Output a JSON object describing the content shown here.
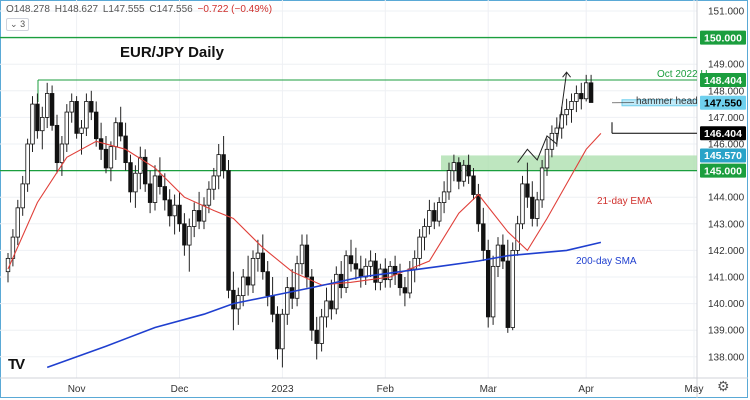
{
  "header": {
    "open": "O148.278",
    "high": "H148.627",
    "low": "L147.555",
    "close": "C147.556",
    "change": "−0.722 (−0.49%)",
    "indicator_count": "3"
  },
  "chart_data": {
    "type": "candlestick",
    "title": "EUR/JPY Daily",
    "ylim": [
      137.5,
      151.5
    ],
    "yticks": [
      "151.000",
      "150.000",
      "149.000",
      "148.000",
      "147.000",
      "146.000",
      "145.000",
      "144.000",
      "143.000",
      "142.000",
      "141.000",
      "140.000",
      "139.000",
      "138.000"
    ],
    "xticks": [
      "Nov",
      "Dec",
      "2023",
      "Feb",
      "Mar",
      "Apr",
      "May"
    ],
    "price_levels": [
      {
        "value": 150.0,
        "label": "150.000",
        "color": "#1b9e3e"
      },
      {
        "value": 148.404,
        "label": "148.404",
        "color": "#1b9e3e"
      },
      {
        "value": 147.55,
        "label": "147.550",
        "color": "#6fd0ee"
      },
      {
        "value": 146.404,
        "label": "146.404",
        "color": "#000000"
      },
      {
        "value": 145.57,
        "label": "145.570",
        "color": "#2aa3c8"
      },
      {
        "value": 145.0,
        "label": "145.000",
        "color": "#1b9e3e"
      }
    ],
    "annotations": {
      "oct_high": "Oct 2022 H",
      "hammer": "hammer head",
      "ema": "21-day EMA",
      "sma": "200-day SMA"
    },
    "support_zone": [
      145.0,
      145.57
    ],
    "candles": [
      [
        141.2,
        141.9,
        140.8,
        141.7
      ],
      [
        141.7,
        142.8,
        141.4,
        142.5
      ],
      [
        142.5,
        143.9,
        142.2,
        143.6
      ],
      [
        143.6,
        144.8,
        143.3,
        144.5
      ],
      [
        144.5,
        146.2,
        144.2,
        146.0
      ],
      [
        146.0,
        147.8,
        145.7,
        147.5
      ],
      [
        147.5,
        147.9,
        146.2,
        146.5
      ],
      [
        146.5,
        147.4,
        145.8,
        147.0
      ],
      [
        147.0,
        148.3,
        146.6,
        147.9
      ],
      [
        147.9,
        148.2,
        146.5,
        146.7
      ],
      [
        146.7,
        147.1,
        144.9,
        145.3
      ],
      [
        145.3,
        146.3,
        144.8,
        146.0
      ],
      [
        146.0,
        147.5,
        145.7,
        147.2
      ],
      [
        147.2,
        147.9,
        146.8,
        147.6
      ],
      [
        147.6,
        147.8,
        146.2,
        146.4
      ],
      [
        146.4,
        146.9,
        145.6,
        146.6
      ],
      [
        146.6,
        147.9,
        146.3,
        147.6
      ],
      [
        147.6,
        148.0,
        146.9,
        147.2
      ],
      [
        147.2,
        147.6,
        145.9,
        146.2
      ],
      [
        146.2,
        146.8,
        145.4,
        145.8
      ],
      [
        145.8,
        146.3,
        144.9,
        145.1
      ],
      [
        145.1,
        146.1,
        144.6,
        145.9
      ],
      [
        145.9,
        147.0,
        145.4,
        146.8
      ],
      [
        146.8,
        147.4,
        146.1,
        146.3
      ],
      [
        146.3,
        146.8,
        145.0,
        145.3
      ],
      [
        145.3,
        145.6,
        143.8,
        144.2
      ],
      [
        144.2,
        145.2,
        143.6,
        144.9
      ],
      [
        144.9,
        145.9,
        144.3,
        145.5
      ],
      [
        145.5,
        145.8,
        144.2,
        144.5
      ],
      [
        144.5,
        145.0,
        143.4,
        143.8
      ],
      [
        143.8,
        145.2,
        143.5,
        144.8
      ],
      [
        144.8,
        145.5,
        144.1,
        144.4
      ],
      [
        144.4,
        144.9,
        143.5,
        143.9
      ],
      [
        143.9,
        144.3,
        142.9,
        143.3
      ],
      [
        143.3,
        144.1,
        142.6,
        143.7
      ],
      [
        143.7,
        144.2,
        142.7,
        143.0
      ],
      [
        143.0,
        143.4,
        141.8,
        142.2
      ],
      [
        142.2,
        143.2,
        141.2,
        142.9
      ],
      [
        142.9,
        143.8,
        142.5,
        143.5
      ],
      [
        143.5,
        144.2,
        142.8,
        143.1
      ],
      [
        143.1,
        144.0,
        142.8,
        143.7
      ],
      [
        143.7,
        144.6,
        143.4,
        144.3
      ],
      [
        144.3,
        145.1,
        143.9,
        144.8
      ],
      [
        144.8,
        146.0,
        144.3,
        145.6
      ],
      [
        145.6,
        146.3,
        144.7,
        145.0
      ],
      [
        145.0,
        145.4,
        140.2,
        140.5
      ],
      [
        140.5,
        141.2,
        139.0,
        139.8
      ],
      [
        139.8,
        140.6,
        139.2,
        140.3
      ],
      [
        140.3,
        141.3,
        139.9,
        141.0
      ],
      [
        141.0,
        141.8,
        140.3,
        140.7
      ],
      [
        140.7,
        142.0,
        140.4,
        141.7
      ],
      [
        141.7,
        142.4,
        141.2,
        141.9
      ],
      [
        141.9,
        142.6,
        140.9,
        141.2
      ],
      [
        141.2,
        141.6,
        139.9,
        140.3
      ],
      [
        140.3,
        141.0,
        139.3,
        139.6
      ],
      [
        139.6,
        139.9,
        137.9,
        138.3
      ],
      [
        138.3,
        139.8,
        137.6,
        139.6
      ],
      [
        139.6,
        141.0,
        139.2,
        140.6
      ],
      [
        140.6,
        141.3,
        139.8,
        140.2
      ],
      [
        140.2,
        141.8,
        139.9,
        141.5
      ],
      [
        141.5,
        142.6,
        141.1,
        142.2
      ],
      [
        142.2,
        142.6,
        140.6,
        141.0
      ],
      [
        141.0,
        141.3,
        138.6,
        139.0
      ],
      [
        139.0,
        139.5,
        137.9,
        138.5
      ],
      [
        138.5,
        139.8,
        138.2,
        139.5
      ],
      [
        139.5,
        140.6,
        139.1,
        140.1
      ],
      [
        140.1,
        140.9,
        139.4,
        139.8
      ],
      [
        139.8,
        141.4,
        139.6,
        141.1
      ],
      [
        141.1,
        141.6,
        140.2,
        140.6
      ],
      [
        140.6,
        142.0,
        140.4,
        141.8
      ],
      [
        141.8,
        142.4,
        141.2,
        141.5
      ],
      [
        141.5,
        142.1,
        140.9,
        141.3
      ],
      [
        141.3,
        141.8,
        140.6,
        141.0
      ],
      [
        141.0,
        141.7,
        140.7,
        141.4
      ],
      [
        141.4,
        142.0,
        141.0,
        141.6
      ],
      [
        141.6,
        141.9,
        140.5,
        140.8
      ],
      [
        140.8,
        141.5,
        140.5,
        141.3
      ],
      [
        141.3,
        141.7,
        140.6,
        140.9
      ],
      [
        140.9,
        141.6,
        140.6,
        141.4
      ],
      [
        141.4,
        141.8,
        140.7,
        141.1
      ],
      [
        141.1,
        141.5,
        140.3,
        140.6
      ],
      [
        140.6,
        141.0,
        139.9,
        140.4
      ],
      [
        140.4,
        141.6,
        140.2,
        141.3
      ],
      [
        141.3,
        142.0,
        140.8,
        141.7
      ],
      [
        141.7,
        142.8,
        141.4,
        142.5
      ],
      [
        142.5,
        143.2,
        142.0,
        142.9
      ],
      [
        142.9,
        143.9,
        142.6,
        143.5
      ],
      [
        143.5,
        143.8,
        142.8,
        143.1
      ],
      [
        143.1,
        144.0,
        142.9,
        143.8
      ],
      [
        143.8,
        144.6,
        143.4,
        144.2
      ],
      [
        144.2,
        145.3,
        143.9,
        145.0
      ],
      [
        145.0,
        145.6,
        144.6,
        145.3
      ],
      [
        145.3,
        145.5,
        144.3,
        144.6
      ],
      [
        144.6,
        145.4,
        144.4,
        145.2
      ],
      [
        145.2,
        145.6,
        144.5,
        144.8
      ],
      [
        144.8,
        145.1,
        143.9,
        144.1
      ],
      [
        144.1,
        144.5,
        142.7,
        143.0
      ],
      [
        143.0,
        143.6,
        141.6,
        142.0
      ],
      [
        142.0,
        142.4,
        139.1,
        139.5
      ],
      [
        139.5,
        141.8,
        139.2,
        141.4
      ],
      [
        141.4,
        142.5,
        141.0,
        142.2
      ],
      [
        142.2,
        142.6,
        141.3,
        141.6
      ],
      [
        141.6,
        142.4,
        138.9,
        139.1
      ],
      [
        139.1,
        142.3,
        139.0,
        142.0
      ],
      [
        142.0,
        143.3,
        141.8,
        143.0
      ],
      [
        143.0,
        144.8,
        142.8,
        144.5
      ],
      [
        144.5,
        145.3,
        143.6,
        144.0
      ],
      [
        144.0,
        144.6,
        142.9,
        143.2
      ],
      [
        143.2,
        144.2,
        142.9,
        143.9
      ],
      [
        143.9,
        145.4,
        143.6,
        145.1
      ],
      [
        145.1,
        146.2,
        144.8,
        145.8
      ],
      [
        145.8,
        146.7,
        145.5,
        146.4
      ],
      [
        146.4,
        147.0,
        145.9,
        146.6
      ],
      [
        146.6,
        147.4,
        146.2,
        147.1
      ],
      [
        147.1,
        147.7,
        146.7,
        147.3
      ],
      [
        147.3,
        147.9,
        146.8,
        147.6
      ],
      [
        147.6,
        148.2,
        147.2,
        147.9
      ],
      [
        147.9,
        148.3,
        147.3,
        147.7
      ],
      [
        147.7,
        148.6,
        147.6,
        148.3
      ],
      [
        148.3,
        148.6,
        147.6,
        147.56
      ]
    ],
    "ema21": [
      [
        0,
        141.3
      ],
      [
        6,
        143.8
      ],
      [
        12,
        145.5
      ],
      [
        18,
        146.1
      ],
      [
        24,
        145.8
      ],
      [
        30,
        145.1
      ],
      [
        36,
        144.0
      ],
      [
        42,
        143.5
      ],
      [
        46,
        143.2
      ],
      [
        52,
        142.1
      ],
      [
        58,
        141.2
      ],
      [
        64,
        140.7
      ],
      [
        70,
        140.8
      ],
      [
        78,
        141.0
      ],
      [
        86,
        141.6
      ],
      [
        92,
        143.4
      ],
      [
        96,
        144.1
      ],
      [
        102,
        142.7
      ],
      [
        106,
        142.0
      ],
      [
        110,
        143.2
      ],
      [
        114,
        144.5
      ],
      [
        118,
        145.8
      ],
      [
        121,
        146.4
      ]
    ],
    "sma200": [
      [
        8,
        137.6
      ],
      [
        20,
        138.4
      ],
      [
        30,
        139.1
      ],
      [
        40,
        139.6
      ],
      [
        46,
        140.0
      ],
      [
        54,
        140.3
      ],
      [
        62,
        140.6
      ],
      [
        72,
        141.0
      ],
      [
        80,
        141.2
      ],
      [
        88,
        141.4
      ],
      [
        96,
        141.6
      ],
      [
        102,
        141.8
      ],
      [
        108,
        141.9
      ],
      [
        114,
        142.0
      ],
      [
        121,
        142.3
      ]
    ],
    "projection": [
      [
        104,
        145.3
      ],
      [
        106,
        145.8
      ],
      [
        108,
        145.4
      ],
      [
        110,
        146.3
      ],
      [
        112,
        146.0
      ],
      [
        114,
        148.7
      ]
    ]
  }
}
